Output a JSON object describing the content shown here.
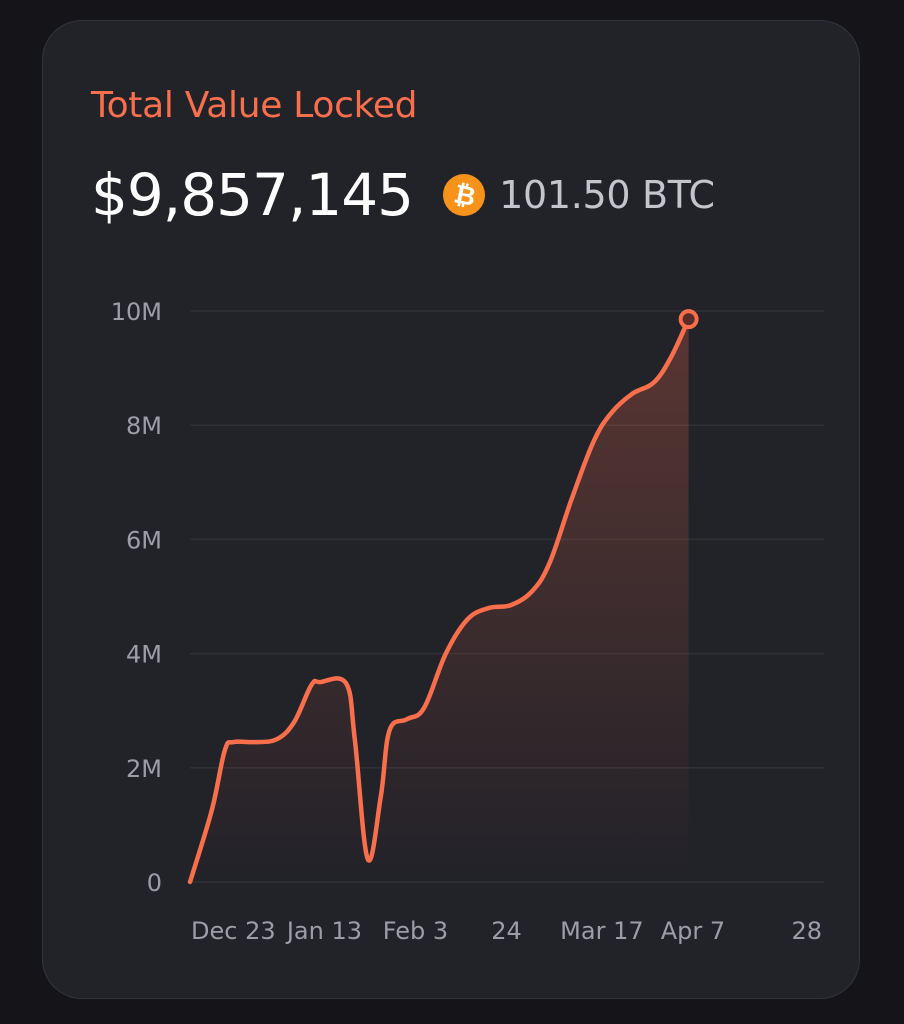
{
  "header": {
    "title": "Total Value Locked",
    "value": "$9,857,145",
    "btc_amount": "101.50 BTC",
    "btc_icon": "bitcoin-icon"
  },
  "colors": {
    "accent": "#f96f4c",
    "background": "#151519",
    "card": "#222229",
    "bitcoin": "#f7931a"
  },
  "chart_data": {
    "type": "area",
    "title": "Total Value Locked",
    "xlabel": "",
    "ylabel": "",
    "ylim": [
      0,
      10000000
    ],
    "grid": true,
    "y_ticks": [
      {
        "value": 0,
        "label": "0"
      },
      {
        "value": 2000000,
        "label": "2M"
      },
      {
        "value": 4000000,
        "label": "4M"
      },
      {
        "value": 6000000,
        "label": "6M"
      },
      {
        "value": 8000000,
        "label": "8M"
      },
      {
        "value": 10000000,
        "label": "10M"
      }
    ],
    "x_ticks": [
      {
        "date": "2023-12-23",
        "label": "Dec 23"
      },
      {
        "date": "2024-01-13",
        "label": "Jan 13"
      },
      {
        "date": "2024-02-03",
        "label": "Feb 3"
      },
      {
        "date": "2024-02-24",
        "label": "24"
      },
      {
        "date": "2024-03-17",
        "label": "Mar 17"
      },
      {
        "date": "2024-04-07",
        "label": "Apr 7"
      },
      {
        "date": "2024-04-28",
        "label": "28"
      }
    ],
    "series": [
      {
        "points": [
          {
            "x": "2023-12-13",
            "y": 0
          },
          {
            "x": "2023-12-18",
            "y": 1250000
          },
          {
            "x": "2023-12-21",
            "y": 2300000
          },
          {
            "x": "2023-12-23",
            "y": 2450000
          },
          {
            "x": "2023-12-28",
            "y": 2450000
          },
          {
            "x": "2024-01-02",
            "y": 2500000
          },
          {
            "x": "2024-01-06",
            "y": 2800000
          },
          {
            "x": "2024-01-10",
            "y": 3450000
          },
          {
            "x": "2024-01-12",
            "y": 3500000
          },
          {
            "x": "2024-01-18",
            "y": 3480000
          },
          {
            "x": "2024-01-20",
            "y": 2500000
          },
          {
            "x": "2024-01-23",
            "y": 400000
          },
          {
            "x": "2024-01-26",
            "y": 1500000
          },
          {
            "x": "2024-01-28",
            "y": 2650000
          },
          {
            "x": "2024-02-01",
            "y": 2850000
          },
          {
            "x": "2024-02-05",
            "y": 3050000
          },
          {
            "x": "2024-02-10",
            "y": 4000000
          },
          {
            "x": "2024-02-15",
            "y": 4600000
          },
          {
            "x": "2024-02-20",
            "y": 4800000
          },
          {
            "x": "2024-02-25",
            "y": 4850000
          },
          {
            "x": "2024-03-01",
            "y": 5100000
          },
          {
            "x": "2024-03-05",
            "y": 5600000
          },
          {
            "x": "2024-03-10",
            "y": 6700000
          },
          {
            "x": "2024-03-15",
            "y": 7700000
          },
          {
            "x": "2024-03-19",
            "y": 8200000
          },
          {
            "x": "2024-03-24",
            "y": 8550000
          },
          {
            "x": "2024-03-29",
            "y": 8750000
          },
          {
            "x": "2024-04-02",
            "y": 9200000
          },
          {
            "x": "2024-04-06",
            "y": 9857145
          }
        ]
      }
    ]
  }
}
